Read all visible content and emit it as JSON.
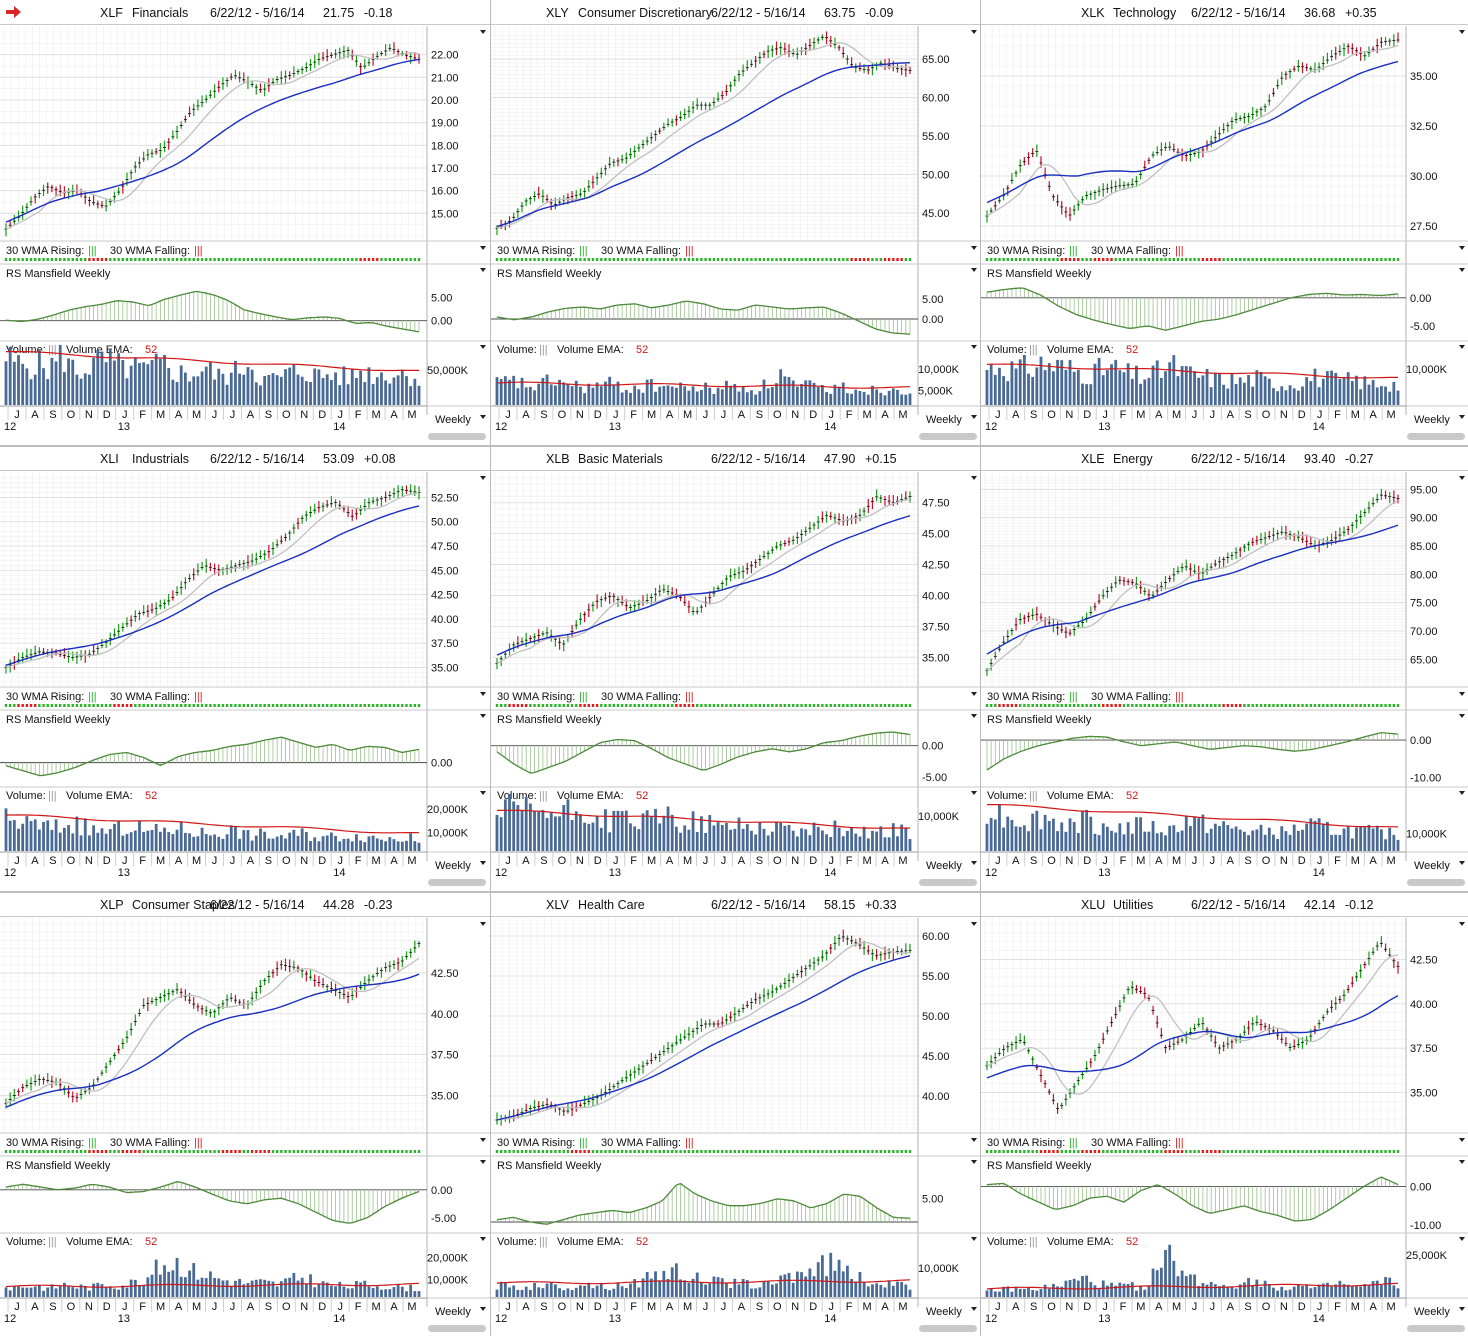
{
  "date_range": "6/22/12 - 5/16/14",
  "indicators": {
    "wma_rising": "30 WMA Rising:",
    "wma_falling": "30 WMA Falling:",
    "rs": "RS Mansfield Weekly",
    "volume": "Volume:",
    "volume_ema": "Volume EMA:",
    "volume_ema_period": "52",
    "period_label": "Weekly"
  },
  "x_axis": {
    "months": [
      "J",
      "A",
      "S",
      "O",
      "N",
      "D",
      "J",
      "F",
      "M",
      "A",
      "M",
      "J",
      "J",
      "A",
      "S",
      "O",
      "N",
      "D",
      "J",
      "F",
      "M",
      "A",
      "M"
    ],
    "years": [
      "12",
      "13",
      "14"
    ]
  },
  "colors": {
    "price_up": "#1f9a1f",
    "price_down": "#c4122f",
    "wma_line": "#1a2fbf",
    "sma_line": "#c0c0c0",
    "rs_fill": "#4d8a3a",
    "volume_bars": "#4a6a96",
    "volume_ema": "#d01616",
    "rising_dot": "#2bb52b",
    "falling_dot": "#e01d1d"
  },
  "icons": {
    "flag": "red-arrow-icon",
    "menu": "triangle-down-icon"
  },
  "chart_data": [
    {
      "type": "line",
      "ticker": "XLF",
      "name": "Financials",
      "last": "21.75",
      "change": "-0.18",
      "price": [
        14.3,
        14.9,
        15.7,
        16.2,
        15.9,
        16.0,
        15.5,
        15.3,
        16.0,
        17.0,
        17.6,
        17.8,
        18.6,
        19.5,
        20.0,
        20.6,
        21.1,
        20.8,
        20.4,
        20.9,
        21.1,
        21.4,
        21.8,
        22.0,
        22.2,
        21.4,
        21.9,
        22.3,
        22.0,
        21.8
      ],
      "price_ticks": [
        "22.00",
        "21.00",
        "20.00",
        "19.00",
        "18.00",
        "17.00",
        "16.00",
        "15.00"
      ],
      "price_range": [
        14.0,
        23.0
      ],
      "wma_start": 15.0,
      "wma_end": 21.6,
      "rs": [
        0.1,
        -0.2,
        0.3,
        1.2,
        2.3,
        3.0,
        3.5,
        4.3,
        4.0,
        3.2,
        4.6,
        5.5,
        6.3,
        5.6,
        4.3,
        2.3,
        1.5,
        0.8,
        0.2,
        0.6,
        0.8,
        0.5,
        -0.6,
        -0.4,
        -1.2,
        -1.8,
        -2.4
      ],
      "rs_ticks": [
        "5.00",
        "0.00"
      ],
      "rs_range": [
        -3.5,
        8.5
      ],
      "vol": [
        90,
        75,
        80,
        70,
        95,
        60,
        78,
        85,
        72,
        70,
        66,
        80,
        62,
        58,
        70,
        54,
        60,
        85,
        48,
        50,
        62,
        66,
        55,
        58,
        52,
        65,
        58,
        60,
        62,
        50
      ],
      "vol_ema_start": 92,
      "vol_ema_end": 58,
      "vol_ticks": [
        "50,000K"
      ],
      "vol_tick_fracs": [
        0.6
      ],
      "falling_pos": [
        0.22,
        0.88
      ]
    },
    {
      "type": "line",
      "ticker": "XLY",
      "name": "Consumer Discretionary",
      "last": "63.75",
      "change": "-0.09",
      "price": [
        43.0,
        44.0,
        46.5,
        47.5,
        46.0,
        47.0,
        47.5,
        49.5,
        51.5,
        52.0,
        53.5,
        55.0,
        56.5,
        57.5,
        59.0,
        59.0,
        60.5,
        63.0,
        64.5,
        66.0,
        66.5,
        65.5,
        66.8,
        68.0,
        66.5,
        64.0,
        63.5,
        64.5,
        63.8,
        63.5
      ],
      "price_ticks": [
        "65.00",
        "60.00",
        "55.00",
        "50.00",
        "45.00"
      ],
      "price_range": [
        42.0,
        68.5
      ],
      "wma_start": 43.5,
      "wma_end": 64.0,
      "rs": [
        0.5,
        -0.2,
        0.5,
        1.8,
        2.7,
        3.0,
        2.5,
        3.5,
        3.8,
        2.8,
        3.5,
        4.5,
        3.8,
        2.5,
        2.2,
        3.5,
        3.0,
        2.5,
        2.8,
        3.0,
        1.5,
        -0.5,
        -2.5,
        -3.5,
        -3.8
      ],
      "rs_ticks": [
        "5.00",
        "0.00"
      ],
      "rs_range": [
        -4.5,
        9.5
      ],
      "vol": [
        40,
        45,
        38,
        35,
        50,
        38,
        34,
        36,
        40,
        32,
        34,
        38,
        36,
        32,
        34,
        30,
        36,
        34,
        30,
        38,
        60,
        32,
        36,
        30,
        34,
        32,
        30,
        28,
        34,
        30
      ],
      "vol_ema_start": 38,
      "vol_ema_end": 30,
      "vol_ticks": [
        "10,000K",
        "5,000K"
      ],
      "vol_tick_fracs": [
        0.62,
        0.25
      ],
      "falling_pos": [
        0.88,
        0.96
      ]
    },
    {
      "type": "line",
      "ticker": "XLK",
      "name": "Technology",
      "last": "36.68",
      "change": "+0.35",
      "price": [
        28.0,
        29.0,
        30.5,
        31.3,
        29.0,
        28.0,
        29.0,
        29.3,
        29.5,
        29.6,
        31.0,
        31.5,
        31.0,
        31.2,
        32.0,
        32.8,
        33.0,
        33.5,
        35.0,
        35.5,
        35.3,
        36.0,
        36.5,
        36.0,
        36.7,
        36.8
      ],
      "price_ticks": [
        "35.00",
        "32.50",
        "30.00",
        "27.50"
      ],
      "price_range": [
        27.0,
        37.2
      ],
      "wma_start": 29.5,
      "wma_end": 35.2,
      "rs": [
        1.0,
        1.5,
        1.8,
        0.5,
        -1.5,
        -3.0,
        -4.0,
        -4.8,
        -5.5,
        -5.0,
        -5.8,
        -5.0,
        -4.2,
        -3.8,
        -3.0,
        -2.0,
        -1.0,
        0.0,
        0.6,
        0.8,
        0.5,
        0.6,
        0.4,
        0.7
      ],
      "rs_ticks": [
        "0.00",
        "-5.00"
      ],
      "rs_range": [
        -7.0,
        3.0
      ],
      "vol": [
        70,
        78,
        66,
        72,
        80,
        74,
        68,
        62,
        66,
        70,
        58,
        54,
        62,
        76,
        60,
        56,
        50,
        48,
        46,
        52,
        42,
        40,
        44,
        54,
        50,
        46,
        48,
        40,
        44,
        38
      ],
      "vol_ema_start": 70,
      "vol_ema_end": 46,
      "vol_ticks": [
        "10,000K"
      ],
      "vol_tick_fracs": [
        0.62
      ],
      "falling_pos": [
        0.2,
        0.28,
        0.55
      ]
    },
    {
      "type": "line",
      "ticker": "XLI",
      "name": "Industrials",
      "last": "53.09",
      "change": "+0.08",
      "price": [
        35.0,
        36.0,
        36.6,
        36.5,
        36.0,
        36.3,
        37.5,
        39.0,
        40.5,
        41.0,
        42.0,
        44.0,
        45.5,
        45.0,
        45.5,
        46.0,
        47.0,
        48.5,
        50.5,
        51.5,
        52.0,
        50.5,
        52.0,
        52.5,
        53.3,
        53.0
      ],
      "price_ticks": [
        "52.50",
        "50.00",
        "47.50",
        "45.00",
        "42.50",
        "40.00",
        "37.50",
        "35.00"
      ],
      "price_range": [
        33.5,
        54.5
      ],
      "wma_start": 35.5,
      "wma_end": 51.0,
      "rs": [
        -0.3,
        -0.8,
        -1.3,
        -1.0,
        -0.5,
        0.2,
        0.8,
        1.0,
        0.5,
        -0.3,
        0.6,
        1.0,
        1.2,
        1.6,
        1.8,
        2.2,
        2.5,
        2.0,
        1.5,
        1.8,
        1.2,
        1.6,
        1.5,
        1.0,
        1.3
      ],
      "rs_ticks": [
        "0.00"
      ],
      "rs_range": [
        -2.0,
        3.5
      ],
      "vol": [
        60,
        55,
        50,
        45,
        48,
        52,
        40,
        38,
        42,
        48,
        36,
        40,
        44,
        38,
        34,
        36,
        40,
        30,
        32,
        28,
        30,
        34,
        26,
        28,
        30,
        28,
        26,
        24,
        26,
        22
      ],
      "vol_ema_start": 62,
      "vol_ema_end": 30,
      "vol_ticks": [
        "20,000K",
        "10,000K"
      ],
      "vol_tick_fracs": [
        0.72,
        0.32
      ],
      "falling_pos": [
        0.05,
        0.28
      ]
    },
    {
      "type": "line",
      "ticker": "XLB",
      "name": "Basic Materials",
      "last": "47.90",
      "change": "+0.15",
      "price": [
        34.5,
        36.0,
        36.5,
        37.0,
        36.0,
        38.0,
        39.5,
        40.0,
        39.0,
        39.5,
        40.5,
        40.0,
        38.5,
        40.0,
        41.5,
        42.0,
        43.0,
        44.0,
        44.5,
        45.5,
        46.5,
        46.0,
        46.5,
        48.0,
        47.5,
        48.0
      ],
      "price_ticks": [
        "47.50",
        "45.00",
        "42.50",
        "40.00",
        "37.50",
        "35.00"
      ],
      "price_range": [
        33.0,
        49.5
      ],
      "wma_start": 36.0,
      "wma_end": 45.8,
      "rs": [
        -1.0,
        -3.0,
        -4.5,
        -3.5,
        -2.5,
        -1.0,
        0.5,
        1.0,
        0.8,
        -0.5,
        -2.0,
        -3.0,
        -4.0,
        -3.0,
        -1.8,
        -1.0,
        -0.5,
        -1.0,
        -0.5,
        0.5,
        0.8,
        1.5,
        2.0,
        2.2,
        1.8
      ],
      "rs_ticks": [
        "0.00",
        "-5.00"
      ],
      "rs_range": [
        -6.0,
        3.0
      ],
      "vol": [
        70,
        80,
        75,
        78,
        66,
        72,
        74,
        62,
        58,
        66,
        54,
        60,
        68,
        52,
        56,
        50,
        46,
        52,
        48,
        44,
        46,
        40,
        38,
        44,
        42,
        40,
        36,
        38,
        40,
        32
      ],
      "vol_ema_start": 70,
      "vol_ema_end": 38,
      "vol_ticks": [
        "10,000K"
      ],
      "vol_tick_fracs": [
        0.6
      ],
      "falling_pos": [
        0.05,
        0.22,
        0.45
      ]
    },
    {
      "type": "line",
      "ticker": "XLE",
      "name": "Energy",
      "last": "93.40",
      "change": "-0.27",
      "price": [
        63.0,
        68.0,
        72.0,
        73.0,
        71.0,
        69.5,
        72.0,
        76.0,
        79.0,
        78.5,
        76.0,
        79.0,
        81.5,
        80.0,
        82.0,
        83.5,
        85.5,
        86.5,
        87.5,
        86.5,
        85.0,
        86.0,
        88.0,
        91.0,
        94.0,
        93.4
      ],
      "price_ticks": [
        "95.00",
        "90.00",
        "85.00",
        "80.00",
        "75.00",
        "70.00",
        "65.00"
      ],
      "price_range": [
        61.0,
        97.0
      ],
      "wma_start": 69.5,
      "wma_end": 88.0,
      "rs": [
        -8.0,
        -5.0,
        -3.0,
        -1.5,
        -0.5,
        0.5,
        1.0,
        0.8,
        -0.5,
        -1.5,
        -1.0,
        -0.5,
        -1.5,
        -2.5,
        -2.0,
        -1.5,
        -1.8,
        -2.5,
        -3.0,
        -2.5,
        -1.5,
        -0.5,
        0.8,
        2.0,
        1.6
      ],
      "rs_ticks": [
        "0.00",
        "-10.00"
      ],
      "rs_range": [
        -11.5,
        3.5
      ],
      "vol": [
        85,
        70,
        62,
        58,
        66,
        54,
        52,
        60,
        48,
        46,
        44,
        50,
        42,
        40,
        60,
        52,
        48,
        44,
        40,
        36,
        38,
        34,
        44,
        48,
        42,
        40,
        38,
        36,
        34,
        30
      ],
      "vol_ema_start": 80,
      "vol_ema_end": 40,
      "vol_ticks": [
        "10,000K"
      ],
      "vol_tick_fracs": [
        0.3
      ],
      "falling_pos": [
        0.05,
        0.3,
        0.6
      ]
    },
    {
      "type": "line",
      "ticker": "XLP",
      "name": "Consumer Staples",
      "last": "44.28",
      "change": "-0.23",
      "price": [
        34.5,
        35.5,
        36.0,
        35.8,
        34.8,
        35.5,
        37.0,
        38.5,
        40.5,
        41.0,
        41.5,
        40.5,
        40.0,
        41.0,
        40.5,
        42.0,
        43.0,
        42.8,
        42.0,
        41.5,
        41.0,
        42.0,
        42.8,
        43.2,
        44.3
      ],
      "price_ticks": [
        "42.50",
        "40.00",
        "37.50",
        "35.00"
      ],
      "price_range": [
        33.0,
        45.5
      ],
      "wma_start": 34.0,
      "wma_end": 42.5,
      "rs": [
        0.5,
        1.0,
        0.5,
        0.0,
        0.3,
        1.0,
        0.5,
        -0.5,
        -0.3,
        0.5,
        1.5,
        0.5,
        -0.8,
        -2.0,
        -2.5,
        -1.8,
        -1.5,
        -2.5,
        -4.0,
        -5.5,
        -6.0,
        -5.0,
        -3.0,
        -1.5,
        -0.3
      ],
      "rs_ticks": [
        "0.00",
        "-5.00"
      ],
      "rs_range": [
        -7.0,
        3.0
      ],
      "vol": [
        18,
        20,
        22,
        16,
        24,
        20,
        18,
        26,
        22,
        28,
        40,
        62,
        66,
        50,
        44,
        34,
        30,
        26,
        28,
        24,
        32,
        38,
        26,
        22,
        20,
        24,
        22,
        20,
        18,
        16
      ],
      "vol_ema_start": 18,
      "vol_ema_end": 22,
      "vol_ticks": [
        "20,000K",
        "10,000K"
      ],
      "vol_tick_fracs": [
        0.68,
        0.3
      ],
      "falling_pos": [
        0.22,
        0.3,
        0.55,
        0.62
      ]
    },
    {
      "type": "line",
      "ticker": "XLV",
      "name": "Health Care",
      "last": "58.15",
      "change": "+0.33",
      "price": [
        37.0,
        37.5,
        38.5,
        39.0,
        38.0,
        39.0,
        40.0,
        41.5,
        43.0,
        44.5,
        46.0,
        47.5,
        49.0,
        49.0,
        50.5,
        52.0,
        53.0,
        54.5,
        56.0,
        57.5,
        60.0,
        59.0,
        57.5,
        58.0,
        58.2
      ],
      "price_ticks": [
        "60.00",
        "55.00",
        "50.00",
        "45.00",
        "40.00"
      ],
      "price_range": [
        36.0,
        61.5
      ],
      "wma_start": 37.0,
      "wma_end": 56.5,
      "rs": [
        0.5,
        1.0,
        0.0,
        -0.5,
        0.5,
        1.5,
        2.0,
        2.5,
        2.0,
        3.0,
        4.5,
        8.5,
        6.0,
        4.5,
        3.5,
        3.5,
        4.0,
        5.0,
        4.5,
        3.0,
        4.0,
        6.0,
        5.5,
        3.0,
        1.0,
        0.8
      ],
      "rs_ticks": [
        "5.00"
      ],
      "rs_range": [
        -1.5,
        10.5
      ],
      "vol": [
        22,
        20,
        18,
        24,
        20,
        18,
        26,
        22,
        20,
        24,
        28,
        40,
        50,
        44,
        36,
        30,
        28,
        26,
        24,
        22,
        36,
        44,
        52,
        60,
        66,
        40,
        30,
        26,
        22,
        20
      ],
      "vol_ema_start": 24,
      "vol_ema_end": 28,
      "vol_ticks": [
        "10,000K"
      ],
      "vol_tick_fracs": [
        0.5
      ],
      "falling_pos": [
        0.2
      ]
    },
    {
      "type": "line",
      "ticker": "XLU",
      "name": "Utilities",
      "last": "42.14",
      "change": "-0.12",
      "price": [
        36.5,
        37.5,
        38.0,
        36.0,
        34.0,
        35.5,
        37.0,
        39.0,
        41.0,
        40.5,
        37.5,
        38.0,
        39.0,
        37.5,
        38.0,
        39.0,
        38.5,
        37.5,
        38.0,
        39.5,
        40.5,
        42.0,
        43.5,
        42.1
      ],
      "price_ticks": [
        "42.50",
        "40.00",
        "37.50",
        "35.00"
      ],
      "price_range": [
        33.0,
        44.5
      ],
      "wma_start": 35.0,
      "wma_end": 39.8,
      "rs": [
        0.5,
        0.8,
        -2.0,
        -4.0,
        -6.0,
        -5.0,
        -3.0,
        -2.5,
        -4.0,
        -1.0,
        0.5,
        -2.0,
        -5.0,
        -7.0,
        -6.0,
        -5.0,
        -6.5,
        -7.5,
        -9.0,
        -8.5,
        -6.0,
        -3.0,
        0.0,
        2.5,
        0.5
      ],
      "rs_ticks": [
        "0.00",
        "-10.00"
      ],
      "rs_range": [
        -11.0,
        3.5
      ],
      "vol": [
        12,
        14,
        16,
        14,
        18,
        20,
        30,
        34,
        24,
        20,
        22,
        18,
        50,
        80,
        40,
        30,
        26,
        24,
        28,
        34,
        20,
        18,
        22,
        16,
        20,
        26,
        18,
        22,
        30,
        24
      ],
      "vol_ema_start": 14,
      "vol_ema_end": 22,
      "vol_ticks": [
        "25,000K"
      ],
      "vol_tick_fracs": [
        0.72
      ],
      "falling_pos": [
        0.15,
        0.25,
        0.45,
        0.55
      ]
    }
  ]
}
